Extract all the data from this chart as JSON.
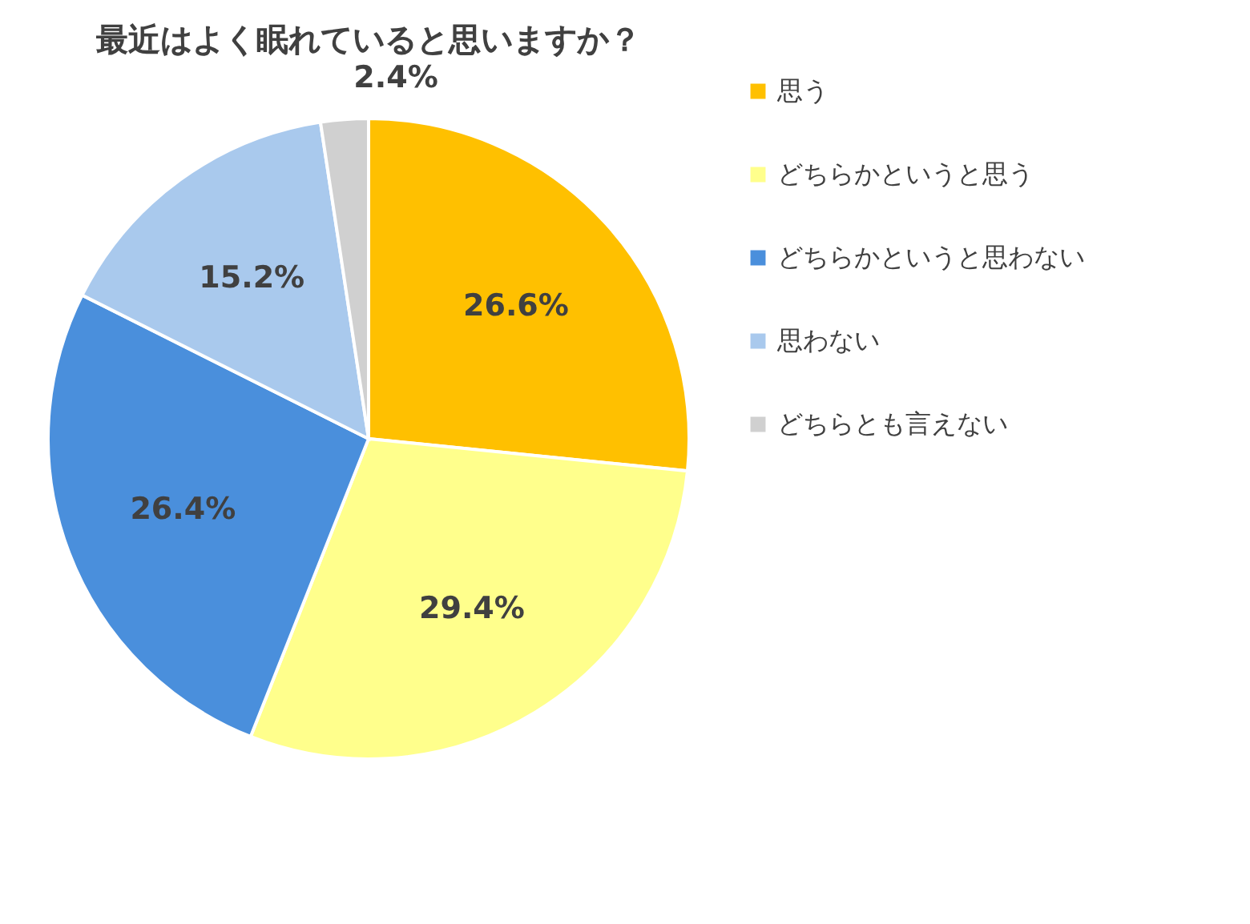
{
  "chart_data": {
    "type": "pie",
    "title": "最近はよく眠れていると思いますか？",
    "categories": [
      "思う",
      "どちらかというと思う",
      "どちらかというと思わない",
      "思わない",
      "どちらとも言えない"
    ],
    "values": [
      26.6,
      29.4,
      26.4,
      15.2,
      2.4
    ],
    "value_labels": [
      "26.6%",
      "29.4%",
      "26.4%",
      "15.2%",
      "2.4%"
    ],
    "colors": [
      "#ffc000",
      "#ffff8c",
      "#4a8fdc",
      "#a9c9ed",
      "#d0d0d0"
    ],
    "legend": "right"
  }
}
